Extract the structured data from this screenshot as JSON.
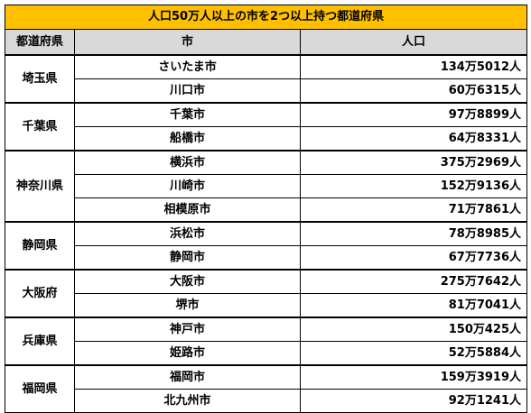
{
  "title": "人口50万人以上の市を2つ以上持つ都道府県",
  "headers": {
    "prefecture": "都道府県",
    "city": "市",
    "population": "人口"
  },
  "rows": [
    {
      "prefecture": "埼玉県",
      "cities": [
        {
          "name": "さいたま市",
          "population": "134万5012人"
        },
        {
          "name": "川口市",
          "population": "60万6315人"
        }
      ]
    },
    {
      "prefecture": "千葉県",
      "cities": [
        {
          "name": "千葉市",
          "population": "97万8899人"
        },
        {
          "name": "船橋市",
          "population": "64万8331人"
        }
      ]
    },
    {
      "prefecture": "神奈川県",
      "cities": [
        {
          "name": "横浜市",
          "population": "375万2969人"
        },
        {
          "name": "川崎市",
          "population": "152万9136人"
        },
        {
          "name": "相模原市",
          "population": "71万7861人"
        }
      ]
    },
    {
      "prefecture": "静岡県",
      "cities": [
        {
          "name": "浜松市",
          "population": "78万8985人"
        },
        {
          "name": "静岡市",
          "population": "67万7736人"
        }
      ]
    },
    {
      "prefecture": "大阪府",
      "cities": [
        {
          "name": "大阪市",
          "population": "275万7642人"
        },
        {
          "name": "堺市",
          "population": "81万7041人"
        }
      ]
    },
    {
      "prefecture": "兵庫県",
      "cities": [
        {
          "name": "神戸市",
          "population": "150万425人"
        },
        {
          "name": "姫路市",
          "population": "52万5884人"
        }
      ]
    },
    {
      "prefecture": "福岡県",
      "cities": [
        {
          "name": "福岡市",
          "population": "159万3919人"
        },
        {
          "name": "北九州市",
          "population": "92万1241人"
        }
      ]
    }
  ],
  "colors": {
    "title_background": "#ffc000",
    "header_background": "#d9d9d9"
  }
}
